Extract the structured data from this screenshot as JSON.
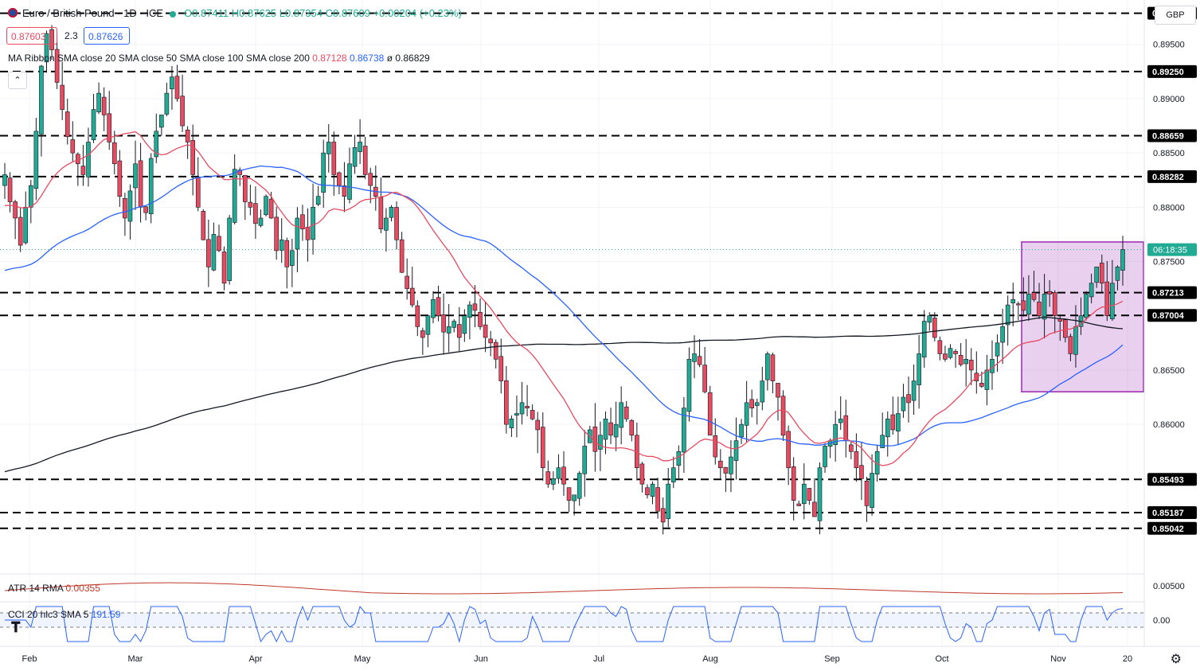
{
  "header": {
    "symbol": "Euro / British Pound · 1D · ICE",
    "ohlc": "O0.87411 H0.87625 L0.87354 C0.87609 +0.00204 (+0.23%)"
  },
  "quote": {
    "bid": "0.87603",
    "spread": "2.3",
    "ask": "0.87626"
  },
  "ma_legend": {
    "label": "MA Ribbon SMA close 20 SMA close 50 SMA close 100 SMA close 200",
    "v20": "0.87128",
    "v50": "0.86738",
    "v200": "ø 0.86829"
  },
  "atr_legend": {
    "label": "ATR 14 RMA",
    "value": "0.00355"
  },
  "cci_legend": {
    "label": "CCI 20 hlc3 SMA 5",
    "value": "191.59"
  },
  "currency": "GBP",
  "countdown": "06:18:35",
  "colors": {
    "up": "#22ab94",
    "down": "#e84a5f",
    "sma20": "#e84a5f",
    "sma50": "#2962ff",
    "sma200": "#131722",
    "box": "#9c27b0",
    "atr": "#c0392b",
    "cci": "#2962ff"
  },
  "chart_data": {
    "type": "candlestick",
    "y_axis_ticks": [
      "0.89500",
      "0.89000",
      "0.88500",
      "0.88000",
      "0.87500",
      "0.86500",
      "0.86000"
    ],
    "ylim": [
      0.8485,
      0.8985
    ],
    "x_axis_labels": [
      "Feb",
      "Mar",
      "Apr",
      "May",
      "Jun",
      "Jul",
      "Aug",
      "Sep",
      "Oct",
      "Nov",
      "20"
    ],
    "horizontal_levels": [
      "0.89787",
      "0.89250",
      "0.88659",
      "0.88282",
      "0.87213",
      "0.87004",
      "0.85493",
      "0.85187",
      "0.85042"
    ],
    "last_price": "0.87609",
    "consolidation_box": {
      "price_top": 0.8768,
      "price_bottom": 0.863,
      "start": "Oct 18",
      "end": "Nov 22"
    },
    "closes": [
      0.883,
      0.8805,
      0.879,
      0.8765,
      0.88,
      0.882,
      0.887,
      0.893,
      0.896,
      0.8945,
      0.8915,
      0.889,
      0.8865,
      0.885,
      0.884,
      0.883,
      0.886,
      0.889,
      0.8905,
      0.8885,
      0.886,
      0.884,
      0.881,
      0.879,
      0.8815,
      0.884,
      0.88,
      0.8795,
      0.8845,
      0.887,
      0.8885,
      0.8905,
      0.892,
      0.89,
      0.8875,
      0.886,
      0.883,
      0.88,
      0.877,
      0.8745,
      0.8775,
      0.876,
      0.873,
      0.879,
      0.8835,
      0.883,
      0.8805,
      0.88,
      0.8785,
      0.879,
      0.881,
      0.879,
      0.876,
      0.877,
      0.8745,
      0.876,
      0.879,
      0.878,
      0.877,
      0.88,
      0.881,
      0.885,
      0.886,
      0.883,
      0.882,
      0.881,
      0.884,
      0.8855,
      0.886,
      0.883,
      0.882,
      0.881,
      0.878,
      0.879,
      0.88,
      0.877,
      0.874,
      0.8725,
      0.871,
      0.869,
      0.868,
      0.87,
      0.8715,
      0.87,
      0.8685,
      0.869,
      0.8695,
      0.868,
      0.87,
      0.871,
      0.8705,
      0.869,
      0.868,
      0.8675,
      0.866,
      0.864,
      0.86,
      0.8605,
      0.861,
      0.862,
      0.8615,
      0.8605,
      0.8595,
      0.856,
      0.8545,
      0.855,
      0.856,
      0.8545,
      0.853,
      0.8535,
      0.8555,
      0.858,
      0.8595,
      0.8575,
      0.859,
      0.8605,
      0.859,
      0.86,
      0.862,
      0.8605,
      0.859,
      0.856,
      0.8545,
      0.8535,
      0.8545,
      0.852,
      0.851,
      0.8545,
      0.856,
      0.8575,
      0.8615,
      0.866,
      0.8665,
      0.8655,
      0.863,
      0.859,
      0.857,
      0.856,
      0.8555,
      0.857,
      0.8585,
      0.86,
      0.862,
      0.8615,
      0.862,
      0.864,
      0.8665,
      0.864,
      0.8625,
      0.859,
      0.856,
      0.853,
      0.8525,
      0.8545,
      0.853,
      0.8515,
      0.856,
      0.858,
      0.8585,
      0.86,
      0.8605,
      0.8585,
      0.8575,
      0.856,
      0.855,
      0.8525,
      0.8555,
      0.8575,
      0.859,
      0.8605,
      0.8595,
      0.861,
      0.8625,
      0.862,
      0.864,
      0.8665,
      0.8695,
      0.87,
      0.868,
      0.8665,
      0.866,
      0.867,
      0.8665,
      0.8655,
      0.866,
      0.865,
      0.864,
      0.8635,
      0.865,
      0.866,
      0.8675,
      0.869,
      0.871,
      0.8715,
      0.871,
      0.8705,
      0.872,
      0.8715,
      0.87,
      0.872,
      0.872,
      0.87,
      0.8695,
      0.868,
      0.8665,
      0.869,
      0.87,
      0.872,
      0.873,
      0.8745,
      0.873,
      0.87,
      0.873,
      0.8745,
      0.8761
    ]
  }
}
